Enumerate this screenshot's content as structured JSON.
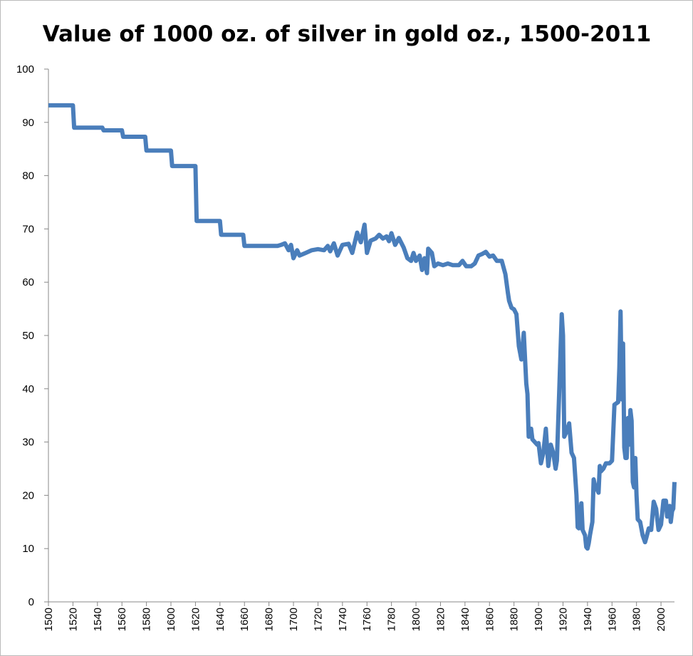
{
  "chart_data": {
    "type": "line",
    "title": "Value of 1000 oz. of silver in gold oz., 1500-2011",
    "color": "#4a7ebb",
    "x": [
      1500,
      1520,
      1521,
      1544,
      1545,
      1560,
      1561,
      1579,
      1580,
      1600,
      1601,
      1620,
      1621,
      1640,
      1641,
      1659,
      1660,
      1687,
      1690,
      1693,
      1696,
      1698,
      1700,
      1703,
      1705,
      1710,
      1715,
      1720,
      1725,
      1728,
      1730,
      1733,
      1736,
      1740,
      1745,
      1748,
      1752,
      1755,
      1758,
      1760,
      1763,
      1767,
      1770,
      1773,
      1776,
      1778,
      1780,
      1783,
      1786,
      1790,
      1793,
      1796,
      1798,
      1800,
      1803,
      1805,
      1807,
      1809,
      1810,
      1813,
      1815,
      1818,
      1822,
      1826,
      1830,
      1835,
      1838,
      1841,
      1845,
      1848,
      1851,
      1854,
      1857,
      1860,
      1863,
      1866,
      1870,
      1873,
      1875,
      1876,
      1878,
      1880,
      1882,
      1884,
      1886,
      1888,
      1890,
      1891,
      1892,
      1894,
      1895,
      1897,
      1899,
      1900,
      1902,
      1904,
      1906,
      1908,
      1910,
      1912,
      1914,
      1915,
      1917,
      1919,
      1920,
      1921,
      1923,
      1925,
      1927,
      1929,
      1931,
      1932,
      1933,
      1935,
      1936,
      1938,
      1939,
      1940,
      1941,
      1942,
      1944,
      1945,
      1946,
      1948,
      1949,
      1950,
      1951,
      1953,
      1955,
      1958,
      1960,
      1962,
      1965,
      1966,
      1967,
      1968,
      1969,
      1970,
      1971,
      1972,
      1973,
      1974,
      1975,
      1976,
      1977,
      1978,
      1979,
      1980,
      1981,
      1983,
      1985,
      1987,
      1988,
      1990,
      1992,
      1994,
      1996,
      1998,
      2000,
      2002,
      2004,
      2005,
      2006,
      2007,
      2008,
      2009,
      2010,
      2011
    ],
    "values": [
      93.2,
      93.2,
      89,
      89,
      88.5,
      88.5,
      87.3,
      87.3,
      84.7,
      84.7,
      81.8,
      81.8,
      71.5,
      71.5,
      68.9,
      68.9,
      66.8,
      66.8,
      67,
      67.3,
      66,
      67,
      64.5,
      66,
      65,
      65.5,
      66,
      66.2,
      66,
      66.8,
      65.8,
      67.3,
      65,
      67,
      67.2,
      65.5,
      69.3,
      67.5,
      70.8,
      65.5,
      67.8,
      68.2,
      68.9,
      68.2,
      68.6,
      67.7,
      69.2,
      67,
      68.3,
      66.5,
      64.5,
      64,
      65.5,
      64,
      65,
      62.3,
      64.5,
      61.7,
      66.3,
      65.5,
      63,
      63.5,
      63.2,
      63.5,
      63.2,
      63.2,
      64,
      63,
      63,
      63.5,
      65,
      65.3,
      65.7,
      64.8,
      65,
      64,
      64,
      61.5,
      58,
      56.5,
      55.2,
      54.9,
      54,
      48,
      45.5,
      50.5,
      41,
      39,
      31,
      32.5,
      30.5,
      30,
      29.5,
      29.8,
      26,
      28,
      32.5,
      25.5,
      29.5,
      28,
      25,
      26.5,
      40,
      54,
      50,
      31,
      32,
      33.5,
      28,
      27,
      20,
      14,
      13.8,
      18.5,
      13.5,
      12.5,
      10.3,
      10,
      11,
      12.5,
      15,
      23,
      22,
      21,
      20.5,
      25.5,
      24.5,
      25,
      26,
      26,
      26.5,
      37,
      37.5,
      44,
      54.5,
      38,
      48.5,
      29,
      27,
      27,
      34.5,
      29.5,
      36,
      34,
      22.5,
      21.5,
      27,
      20,
      15.5,
      15,
      12.5,
      11.2,
      12,
      13.8,
      13.5,
      18.8,
      17.5,
      13.5,
      14.5,
      19,
      19,
      16,
      16.5,
      18,
      15,
      17,
      17.5,
      22.5
    ],
    "xlim": [
      1500,
      2011
    ],
    "xticks": [
      1500,
      1520,
      1540,
      1560,
      1580,
      1600,
      1620,
      1640,
      1660,
      1680,
      1700,
      1720,
      1740,
      1760,
      1780,
      1800,
      1820,
      1840,
      1860,
      1880,
      1900,
      1920,
      1940,
      1960,
      1980,
      2000
    ],
    "ylim": [
      0,
      100
    ],
    "yticks": [
      0,
      10,
      20,
      30,
      40,
      50,
      60,
      70,
      80,
      90,
      100
    ],
    "grid": false
  }
}
